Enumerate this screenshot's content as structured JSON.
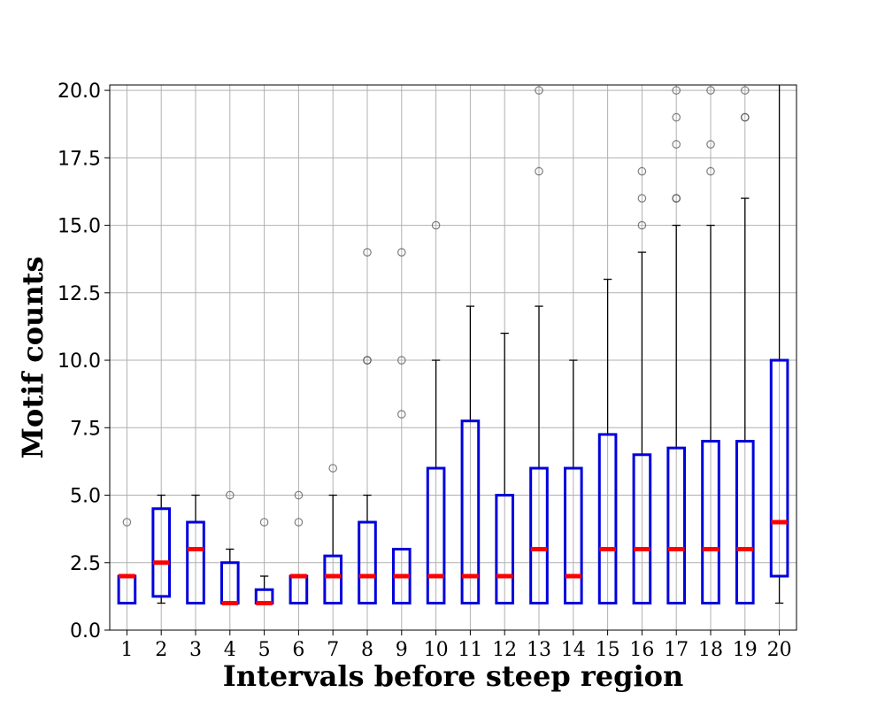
{
  "chart_data": {
    "type": "box",
    "title": "",
    "xlabel": "Intervals before steep region",
    "ylabel": "Motif counts",
    "ylim": [
      0,
      20.2
    ],
    "yticks": [
      "0.0",
      "2.5",
      "5.0",
      "7.5",
      "10.0",
      "12.5",
      "15.0",
      "17.5",
      "20.0"
    ],
    "grid": true,
    "colors": {
      "box": "#0000dd",
      "median": "#ff0000",
      "whisker": "#000000",
      "flier": "#555555",
      "grid": "#b0b0b0"
    },
    "categories": [
      "1",
      "2",
      "3",
      "4",
      "5",
      "6",
      "7",
      "8",
      "9",
      "10",
      "11",
      "12",
      "13",
      "14",
      "15",
      "16",
      "17",
      "18",
      "19",
      "20"
    ],
    "boxes": [
      {
        "label": "1",
        "q1": 1,
        "median": 2,
        "q3": 2,
        "whislo": 1,
        "whishi": 2,
        "fliers": [
          4
        ]
      },
      {
        "label": "2",
        "q1": 1.25,
        "median": 2.5,
        "q3": 4.5,
        "whislo": 1,
        "whishi": 5,
        "fliers": []
      },
      {
        "label": "3",
        "q1": 1,
        "median": 3,
        "q3": 4,
        "whislo": 1,
        "whishi": 5,
        "fliers": []
      },
      {
        "label": "4",
        "q1": 1,
        "median": 1,
        "q3": 2.5,
        "whislo": 1,
        "whishi": 3,
        "fliers": [
          5
        ]
      },
      {
        "label": "5",
        "q1": 1,
        "median": 1,
        "q3": 1.5,
        "whislo": 1,
        "whishi": 2,
        "fliers": [
          4
        ]
      },
      {
        "label": "6",
        "q1": 1,
        "median": 2,
        "q3": 2,
        "whislo": 1,
        "whishi": 2,
        "fliers": [
          4,
          5
        ]
      },
      {
        "label": "7",
        "q1": 1,
        "median": 2,
        "q3": 2.75,
        "whislo": 1,
        "whishi": 5,
        "fliers": [
          6
        ]
      },
      {
        "label": "8",
        "q1": 1,
        "median": 2,
        "q3": 4,
        "whislo": 1,
        "whishi": 5,
        "fliers": [
          10,
          10,
          14
        ]
      },
      {
        "label": "9",
        "q1": 1,
        "median": 2,
        "q3": 3,
        "whislo": 1,
        "whishi": 3,
        "fliers": [
          8,
          10,
          14
        ]
      },
      {
        "label": "10",
        "q1": 1,
        "median": 2,
        "q3": 6,
        "whislo": 1,
        "whishi": 10,
        "fliers": [
          15
        ]
      },
      {
        "label": "11",
        "q1": 1,
        "median": 2,
        "q3": 7.75,
        "whislo": 1,
        "whishi": 12,
        "fliers": []
      },
      {
        "label": "12",
        "q1": 1,
        "median": 2,
        "q3": 5,
        "whislo": 1,
        "whishi": 11,
        "fliers": []
      },
      {
        "label": "13",
        "q1": 1,
        "median": 3,
        "q3": 6,
        "whislo": 1,
        "whishi": 12,
        "fliers": [
          17,
          20
        ]
      },
      {
        "label": "14",
        "q1": 1,
        "median": 2,
        "q3": 6,
        "whislo": 1,
        "whishi": 10,
        "fliers": []
      },
      {
        "label": "15",
        "q1": 1,
        "median": 3,
        "q3": 7.25,
        "whislo": 1,
        "whishi": 13,
        "fliers": []
      },
      {
        "label": "16",
        "q1": 1,
        "median": 3,
        "q3": 6.5,
        "whislo": 1,
        "whishi": 14,
        "fliers": [
          15,
          16,
          17
        ]
      },
      {
        "label": "17",
        "q1": 1,
        "median": 3,
        "q3": 6.75,
        "whislo": 1,
        "whishi": 15,
        "fliers": [
          16,
          16,
          18,
          19,
          20
        ]
      },
      {
        "label": "18",
        "q1": 1,
        "median": 3,
        "q3": 7,
        "whislo": 1,
        "whishi": 15,
        "fliers": [
          17,
          18,
          20
        ]
      },
      {
        "label": "19",
        "q1": 1,
        "median": 3,
        "q3": 7,
        "whislo": 1,
        "whishi": 16,
        "fliers": [
          19,
          19,
          20
        ]
      },
      {
        "label": "20",
        "q1": 2,
        "median": 4,
        "q3": 10,
        "whislo": 1,
        "whishi": 21,
        "fliers": []
      }
    ]
  }
}
